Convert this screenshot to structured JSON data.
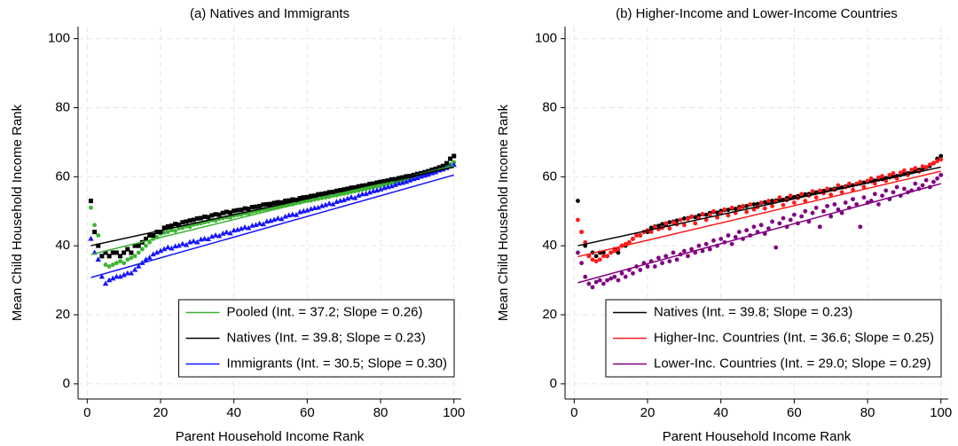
{
  "chart_data": [
    {
      "type": "scatter",
      "title": "(a) Natives and Immigrants",
      "x_label": "Parent Household Income Rank",
      "y_label": "Mean Child Household Income Rank",
      "xlim": [
        -2.5,
        102
      ],
      "ylim": [
        -4.4,
        103.5
      ],
      "xticks": [
        0,
        20,
        40,
        60,
        80,
        100
      ],
      "yticks": [
        0,
        20,
        40,
        60,
        80,
        100
      ],
      "grid": true,
      "legend": "bottom-right",
      "x": [
        1,
        2,
        3,
        4,
        5,
        6,
        7,
        8,
        9,
        10,
        11,
        12,
        13,
        14,
        15,
        16,
        17,
        18,
        19,
        20,
        21,
        22,
        23,
        24,
        25,
        26,
        27,
        28,
        29,
        30,
        31,
        32,
        33,
        34,
        35,
        36,
        37,
        38,
        39,
        40,
        41,
        42,
        43,
        44,
        45,
        46,
        47,
        48,
        49,
        50,
        51,
        52,
        53,
        54,
        55,
        56,
        57,
        58,
        59,
        60,
        61,
        62,
        63,
        64,
        65,
        66,
        67,
        68,
        69,
        70,
        71,
        72,
        73,
        74,
        75,
        76,
        77,
        78,
        79,
        80,
        81,
        82,
        83,
        84,
        85,
        86,
        87,
        88,
        89,
        90,
        91,
        92,
        93,
        94,
        95,
        96,
        97,
        98,
        99,
        100
      ],
      "series": [
        {
          "name": "Pooled (Int. = 37.2; Slope = 0.26)",
          "color": "#3cb432",
          "marker": "circle",
          "fit": {
            "intercept": 37.2,
            "slope": 0.26
          },
          "values": [
            51,
            46,
            43,
            37,
            34.5,
            34,
            34.5,
            35,
            35.5,
            35,
            36,
            36.5,
            37,
            38,
            39,
            40,
            41,
            42,
            42.5,
            43.5,
            43.8,
            44.0,
            44.5,
            44.3,
            45.0,
            45.2,
            45.6,
            45.5,
            46.1,
            46.3,
            46.5,
            46.8,
            47.0,
            47.4,
            47.3,
            47.8,
            48.0,
            48.3,
            48.2,
            48.7,
            48.9,
            49.0,
            49.4,
            49.3,
            49.8,
            50.0,
            50.2,
            50.5,
            50.6,
            50.9,
            51.0,
            51.3,
            51.4,
            51.7,
            51.9,
            52.0,
            52.4,
            52.5,
            52.8,
            53.0,
            53.1,
            53.4,
            53.6,
            53.8,
            54.0,
            54.2,
            54.5,
            54.6,
            54.9,
            55.1,
            55.3,
            55.6,
            55.8,
            56.0,
            56.3,
            56.4,
            56.7,
            57.0,
            57.1,
            57.4,
            57.6,
            57.9,
            58.1,
            58.3,
            58.6,
            58.8,
            59.1,
            59.3,
            59.6,
            59.9,
            60.2,
            60.5,
            60.9,
            61.2,
            61.6,
            62.0,
            62.4,
            62.9,
            63.6,
            64.2
          ]
        },
        {
          "name": "Natives (Int. = 39.8; Slope = 0.23)",
          "color": "#000000",
          "marker": "square",
          "fit": {
            "intercept": 39.8,
            "slope": 0.23
          },
          "values": [
            53,
            44,
            40,
            37,
            38,
            37,
            38,
            38,
            37,
            38,
            39,
            38,
            40,
            40,
            41,
            42,
            43,
            43,
            44,
            44,
            45.2,
            45.6,
            45.8,
            46.3,
            46.1,
            46.8,
            47.0,
            47.3,
            47.5,
            47.9,
            48.0,
            48.4,
            48.3,
            48.8,
            49.1,
            49.0,
            49.5,
            49.8,
            49.6,
            50.1,
            50.3,
            50.4,
            50.8,
            50.7,
            51.2,
            51.3,
            51.5,
            51.9,
            52.0,
            52.1,
            52.4,
            52.6,
            52.5,
            53.0,
            53.1,
            53.4,
            53.3,
            53.8,
            54.0,
            54.1,
            54.4,
            54.5,
            54.9,
            55.0,
            55.2,
            55.5,
            55.6,
            55.9,
            56.1,
            56.3,
            56.5,
            56.8,
            56.9,
            57.2,
            57.4,
            57.5,
            57.9,
            58.0,
            58.3,
            58.5,
            58.7,
            58.9,
            59.2,
            59.3,
            59.6,
            59.8,
            60.1,
            60.2,
            60.5,
            60.8,
            61.0,
            61.3,
            61.6,
            62.0,
            62.3,
            62.7,
            63.1,
            63.9,
            65.2,
            66.0
          ]
        },
        {
          "name": "Immigrants (Int. = 30.5; Slope = 0.30)",
          "color": "#1414ff",
          "marker": "triangle",
          "fit": {
            "intercept": 30.5,
            "slope": 0.3
          },
          "values": [
            42,
            38,
            36,
            31,
            29,
            30,
            30.5,
            31,
            31,
            31.5,
            32,
            32,
            33,
            34,
            35,
            36,
            36.5,
            37.5,
            38,
            38.5,
            39.0,
            39.5,
            39.2,
            39.8,
            40.0,
            40.5,
            40.2,
            41.0,
            41.3,
            41.0,
            41.8,
            42.0,
            41.9,
            42.6,
            43.0,
            42.8,
            43.5,
            43.9,
            43.6,
            44.4,
            44.6,
            44.9,
            45.3,
            45.1,
            45.8,
            46.0,
            46.4,
            46.2,
            47.0,
            47.2,
            47.5,
            47.9,
            47.7,
            48.4,
            48.8,
            49.0,
            48.9,
            49.7,
            50.0,
            50.2,
            50.6,
            50.9,
            51.0,
            51.5,
            51.8,
            52.2,
            52.0,
            52.7,
            53.0,
            53.2,
            53.6,
            54.0,
            53.8,
            54.5,
            54.9,
            55.0,
            55.4,
            55.8,
            56.0,
            56.3,
            56.7,
            57.0,
            57.2,
            57.6,
            58.0,
            58.2,
            58.5,
            58.9,
            59.3,
            59.6,
            60.0,
            60.3,
            60.6,
            61.0,
            61.3,
            61.8,
            62.1,
            62.5,
            63.0,
            63.4
          ]
        }
      ]
    },
    {
      "type": "scatter",
      "title": "(b) Higher-Income and Lower-Income Countries",
      "x_label": "Parent Household Income Rank",
      "y_label": "Mean Child Household Income Rank",
      "xlim": [
        -2.5,
        102
      ],
      "ylim": [
        -4.4,
        103.5
      ],
      "xticks": [
        0,
        20,
        40,
        60,
        80,
        100
      ],
      "yticks": [
        0,
        20,
        40,
        60,
        80,
        100
      ],
      "grid": true,
      "legend": "bottom-right",
      "x": [
        1,
        2,
        3,
        4,
        5,
        6,
        7,
        8,
        9,
        10,
        11,
        12,
        13,
        14,
        15,
        16,
        17,
        18,
        19,
        20,
        21,
        22,
        23,
        24,
        25,
        26,
        27,
        28,
        29,
        30,
        31,
        32,
        33,
        34,
        35,
        36,
        37,
        38,
        39,
        40,
        41,
        42,
        43,
        44,
        45,
        46,
        47,
        48,
        49,
        50,
        51,
        52,
        53,
        54,
        55,
        56,
        57,
        58,
        59,
        60,
        61,
        62,
        63,
        64,
        65,
        66,
        67,
        68,
        69,
        70,
        71,
        72,
        73,
        74,
        75,
        76,
        77,
        78,
        79,
        80,
        81,
        82,
        83,
        84,
        85,
        86,
        87,
        88,
        89,
        90,
        91,
        92,
        93,
        94,
        95,
        96,
        97,
        98,
        99,
        100
      ],
      "series": [
        {
          "name": "Natives (Int. = 39.8; Slope = 0.23)",
          "color": "#000000",
          "marker": "circle",
          "fit": {
            "intercept": 39.8,
            "slope": 0.23
          },
          "values": [
            53,
            44,
            40,
            37,
            38,
            37,
            38,
            38,
            37,
            38,
            39,
            38,
            40,
            40,
            41,
            42,
            43,
            43,
            44,
            44,
            45.2,
            45.6,
            45.8,
            46.3,
            46.1,
            46.8,
            47.0,
            47.3,
            47.5,
            47.9,
            48.0,
            48.4,
            48.3,
            48.8,
            49.1,
            49.0,
            49.5,
            49.8,
            49.6,
            50.1,
            50.3,
            50.4,
            50.8,
            50.7,
            51.2,
            51.3,
            51.5,
            51.9,
            52.0,
            52.1,
            52.4,
            52.6,
            52.5,
            53.0,
            53.1,
            53.4,
            53.3,
            53.8,
            54.0,
            54.1,
            54.4,
            54.5,
            54.9,
            55.0,
            55.2,
            55.5,
            55.6,
            55.9,
            56.1,
            56.3,
            56.5,
            56.8,
            56.9,
            57.2,
            57.4,
            57.5,
            57.9,
            58.0,
            58.3,
            58.5,
            58.7,
            58.9,
            59.2,
            59.3,
            59.6,
            59.8,
            60.1,
            60.2,
            60.5,
            60.8,
            61.0,
            61.3,
            61.6,
            62.0,
            62.3,
            62.7,
            63.1,
            63.9,
            65.2,
            66.0
          ]
        },
        {
          "name": "Higher-Inc. Countries (Int. = 36.6; Slope = 0.25)",
          "color": "#ff1a1a",
          "marker": "circle",
          "fit": {
            "intercept": 36.6,
            "slope": 0.25
          },
          "values": [
            47.5,
            44,
            41,
            37,
            36,
            35.5,
            36,
            37,
            37,
            38,
            38.5,
            39,
            40,
            40.5,
            41,
            42,
            43,
            43,
            44,
            44.5,
            44.0,
            45.5,
            44.8,
            45.2,
            46.5,
            45.0,
            46.8,
            46.2,
            47.5,
            46.0,
            47.8,
            48.5,
            46.5,
            48.0,
            49.2,
            47.5,
            49.0,
            50.0,
            48.2,
            49.5,
            50.5,
            48.8,
            51.0,
            49.5,
            50.8,
            51.5,
            49.8,
            52.0,
            50.5,
            51.2,
            52.5,
            50.8,
            53.0,
            51.5,
            52.8,
            54.0,
            51.8,
            53.2,
            54.5,
            52.5,
            53.8,
            55.0,
            53.0,
            54.5,
            55.8,
            54.0,
            56.0,
            55.2,
            56.5,
            54.8,
            56.2,
            57.5,
            55.5,
            57.0,
            58.0,
            56.2,
            57.8,
            58.5,
            57.0,
            58.8,
            59.5,
            58.0,
            59.8,
            60.2,
            58.8,
            60.5,
            61.0,
            59.5,
            61.2,
            61.8,
            60.5,
            62.0,
            62.5,
            61.5,
            63.0,
            62.8,
            63.5,
            64.0,
            64.5,
            65.0
          ]
        },
        {
          "name": "Lower-Inc. Countries (Int. = 29.0; Slope = 0.29)",
          "color": "#800080",
          "marker": "circle",
          "fit": {
            "intercept": 29.0,
            "slope": 0.29
          },
          "values": [
            38,
            35,
            31,
            29,
            28,
            29.5,
            30,
            29,
            30,
            30.5,
            31,
            30,
            32,
            31,
            33,
            32,
            34,
            33,
            35,
            34,
            35.5,
            34.0,
            36.5,
            35.0,
            37.0,
            35.5,
            38.0,
            36.0,
            37.5,
            38.5,
            37.0,
            39.0,
            38.0,
            40.0,
            38.5,
            40.5,
            39.0,
            41.5,
            40.0,
            42.0,
            41.0,
            43.0,
            40.5,
            42.5,
            44.0,
            42.0,
            44.5,
            43.0,
            45.5,
            44.0,
            46.0,
            43.5,
            45.0,
            47.0,
            39.5,
            46.5,
            48.0,
            45.5,
            47.5,
            49.0,
            46.5,
            48.5,
            50.0,
            47.0,
            49.5,
            51.0,
            45.5,
            50.0,
            51.5,
            48.5,
            52.0,
            50.5,
            49.5,
            52.5,
            51.0,
            53.5,
            52.0,
            45.5,
            54.0,
            52.5,
            53.0,
            55.0,
            52.0,
            54.5,
            56.0,
            53.5,
            55.5,
            57.0,
            54.5,
            56.5,
            55.5,
            56.0,
            58.0,
            56.5,
            57.5,
            59.0,
            57.0,
            58.5,
            59.5,
            60.5
          ]
        }
      ]
    }
  ]
}
